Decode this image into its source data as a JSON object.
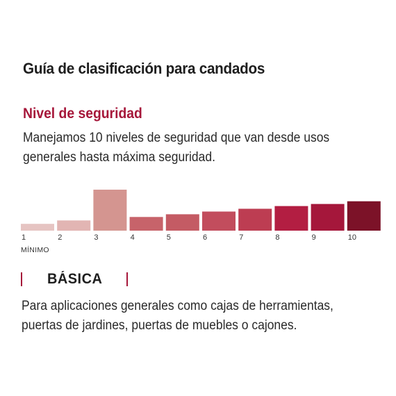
{
  "title": "Guía de clasificación para candados",
  "section": {
    "heading": "Nivel de seguridad",
    "description_line1": "Manejamos 10 niveles de seguridad que van desde usos",
    "description_line2": "generales hasta máxima seguridad."
  },
  "chart_data": {
    "type": "bar",
    "categories": [
      "1",
      "2",
      "3",
      "4",
      "5",
      "6",
      "7",
      "8",
      "9",
      "10"
    ],
    "values": [
      1,
      1.5,
      6,
      2,
      2.4,
      2.8,
      3.2,
      3.6,
      3.9,
      4.3
    ],
    "highlighted_category": "3",
    "colors": [
      "#e6c4c2",
      "#e2b5b3",
      "#d49590",
      "#c7636a",
      "#c45b64",
      "#c24d5d",
      "#bd3d52",
      "#b31e42",
      "#a5173b",
      "#7c1228"
    ],
    "ylim": [
      0,
      6
    ],
    "min_label": "MÍNIMO",
    "grid": false
  },
  "level": {
    "name": "BÁSICA",
    "accent_color": "#a6173a",
    "description_line1": "Para aplicaciones generales como cajas de herramientas,",
    "description_line2": "puertas de jardines, puertas de muebles o cajones."
  }
}
